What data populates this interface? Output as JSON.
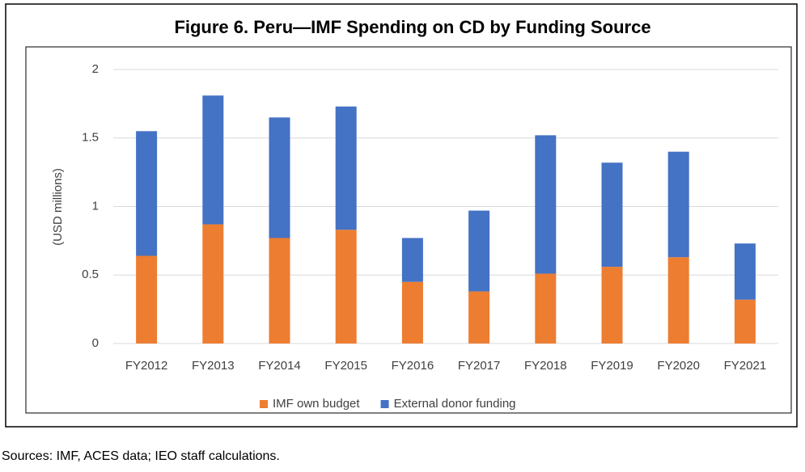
{
  "chart_data": {
    "type": "stacked_bar",
    "title": "Figure 6. Peru—IMF Spending on CD by Funding Source",
    "y_label": "(USD millions)",
    "source": "Sources: IMF, ACES data;  IEO staff calculations.",
    "categories": [
      "FY2012",
      "FY2013",
      "FY2014",
      "FY2015",
      "FY2016",
      "FY2017",
      "FY2018",
      "FY2019",
      "FY2020",
      "FY2021"
    ],
    "series": [
      {
        "name": "IMF own budget",
        "color": "#ed7d31",
        "values": [
          0.64,
          0.87,
          0.77,
          0.83,
          0.45,
          0.38,
          0.51,
          0.56,
          0.63,
          0.32
        ]
      },
      {
        "name": "External donor funding",
        "color": "#4472c4",
        "values": [
          0.91,
          0.94,
          0.88,
          0.9,
          0.32,
          0.59,
          1.01,
          0.76,
          0.77,
          0.41
        ]
      }
    ],
    "ylim": [
      0,
      2
    ],
    "yticks": [
      0,
      0.5,
      1,
      1.5,
      2
    ],
    "grid": true,
    "legend": "bottom"
  }
}
